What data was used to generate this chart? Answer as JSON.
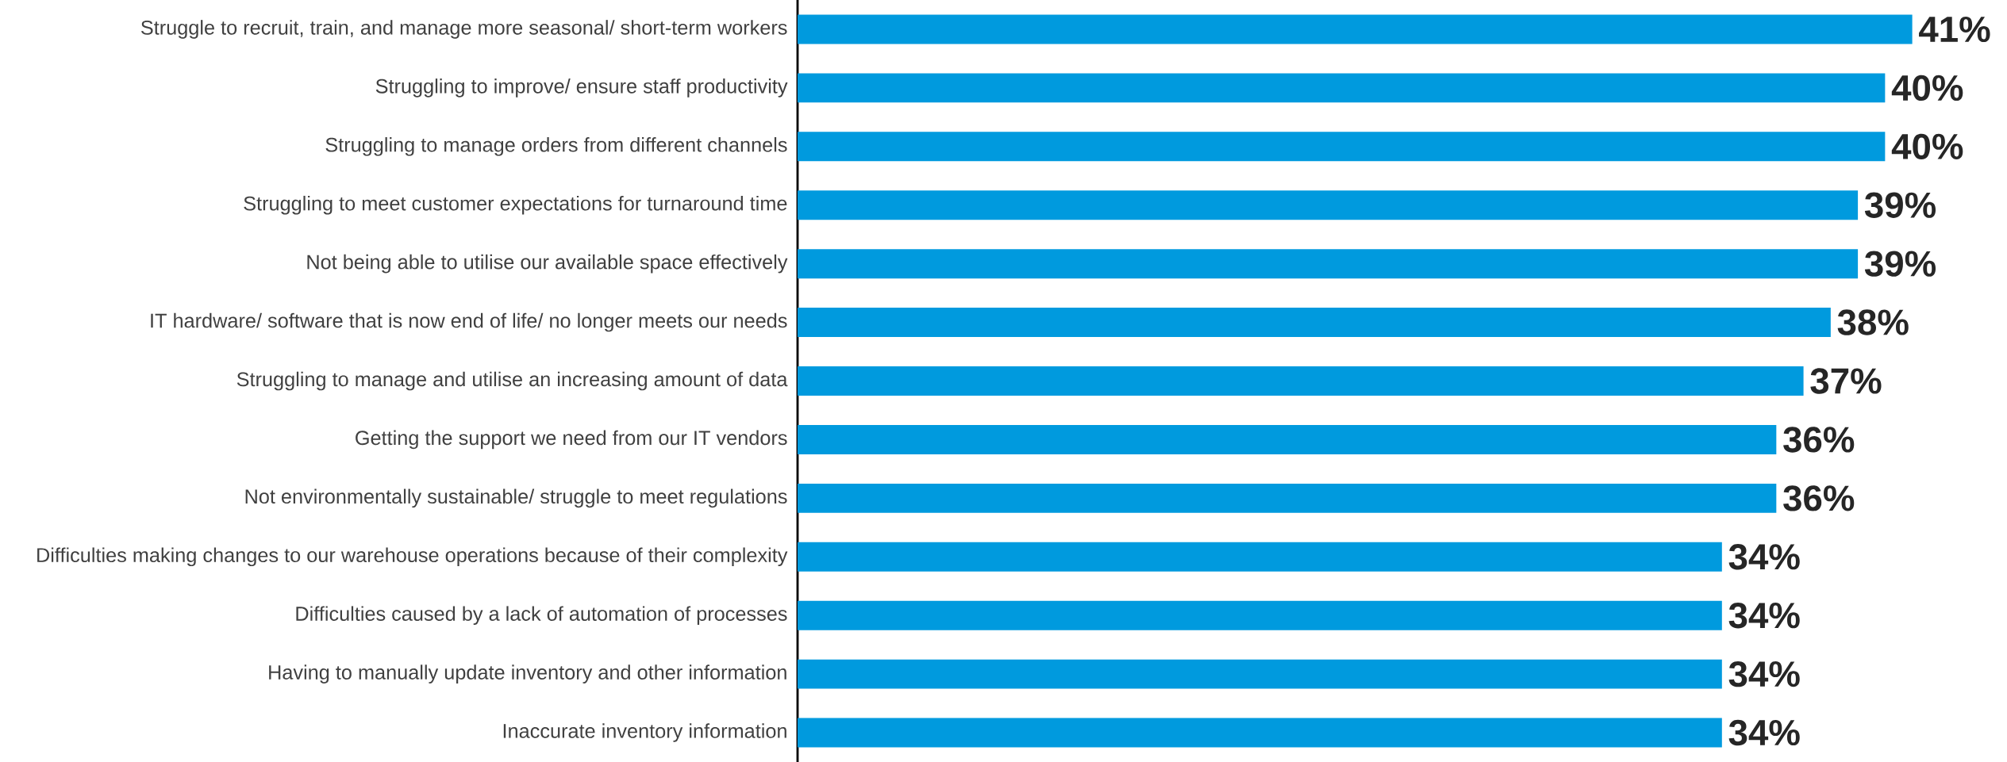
{
  "chart_data": {
    "type": "bar",
    "orientation": "horizontal",
    "color": "#009ade",
    "categories": [
      "Struggle to recruit, train, and manage more seasonal/ short-term workers",
      "Struggling to improve/ ensure staff productivity",
      "Struggling to manage orders from different channels",
      "Struggling to meet customer expectations for turnaround time",
      "Not being able to utilise our available space effectively",
      "IT hardware/ software that is now end of life/ no longer meets our needs",
      "Struggling to manage and utilise an increasing amount of data",
      "Getting the support we need from our IT vendors",
      "Not environmentally sustainable/ struggle to meet regulations",
      "Difficulties making changes to our warehouse operations because of their complexity",
      "Difficulties caused by a lack of automation of processes",
      "Having to manually update inventory and other information",
      "Inaccurate inventory information"
    ],
    "values": [
      41,
      40,
      40,
      39,
      39,
      38,
      37,
      36,
      36,
      34,
      34,
      34,
      34
    ],
    "value_labels": [
      "41%",
      "40%",
      "40%",
      "39%",
      "39%",
      "38%",
      "37%",
      "36%",
      "36%",
      "34%",
      "34%",
      "34%",
      "34%"
    ]
  }
}
